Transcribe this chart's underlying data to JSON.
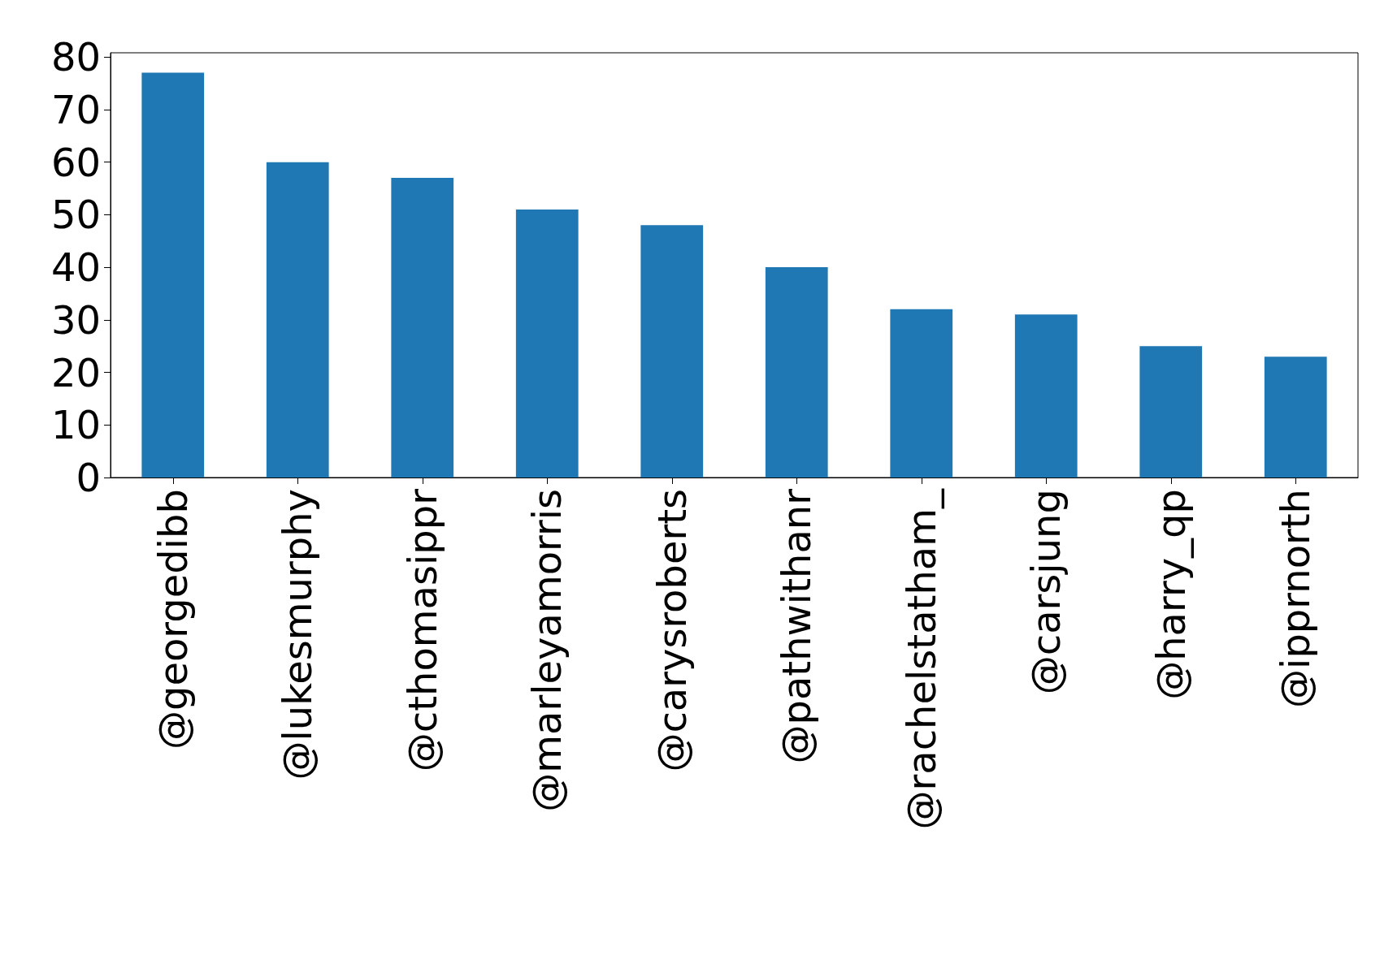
{
  "chart_data": {
    "type": "bar",
    "categories": [
      "@georgedibb",
      "@lukesmurphy",
      "@cthomasippr",
      "@marleyamorris",
      "@carysroberts",
      "@pathwithanr",
      "@rachelstatham_",
      "@carsjung",
      "@harry_qp",
      "@ipprnorth"
    ],
    "values": [
      77,
      60,
      57,
      51,
      48,
      40,
      32,
      31,
      25,
      23
    ],
    "color": "#1f77b4",
    "ylim": [
      0,
      80.8
    ],
    "yticks": [
      0,
      10,
      20,
      30,
      40,
      50,
      60,
      70,
      80
    ],
    "grid": false
  }
}
